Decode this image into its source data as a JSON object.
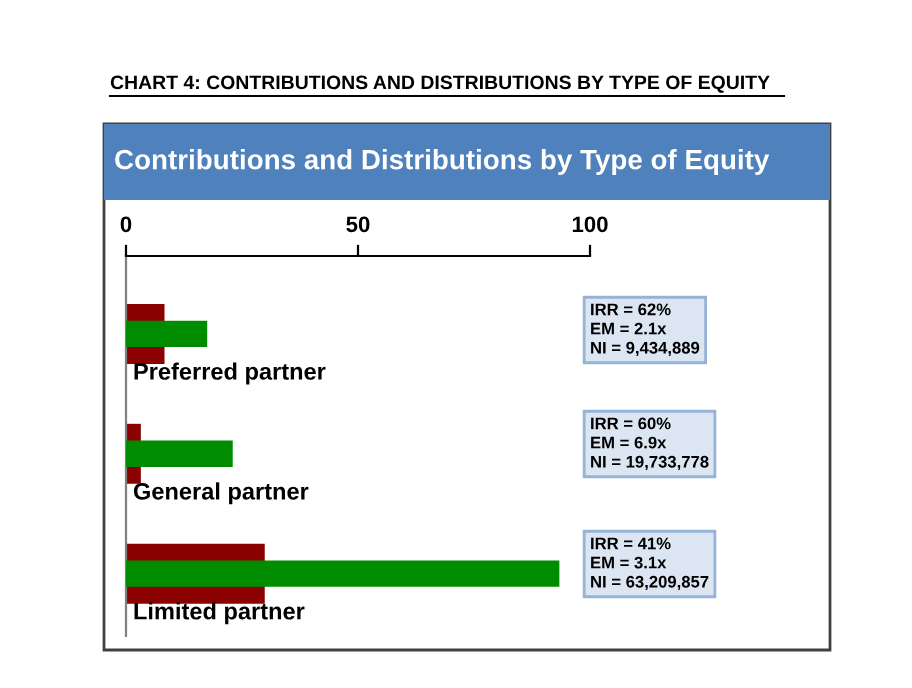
{
  "chart_data": {
    "type": "bar",
    "orientation": "horizontal",
    "title": "CHART 4: CONTRIBUTIONS AND DISTRIBUTIONS BY TYPE OF EQUITY",
    "subtitle": "Contributions and Distributions by Type of Equity",
    "categories": [
      "Preferred partner",
      "General partner",
      "Limited partner"
    ],
    "series": [
      {
        "color": "#8b0000",
        "values": [
          8.3,
          3.2,
          29.9
        ]
      },
      {
        "color": "#008c00",
        "values": [
          17.5,
          23,
          93.4
        ]
      }
    ],
    "xlim": [
      0,
      100
    ],
    "xticks": [
      0,
      50,
      100
    ],
    "grid": false,
    "annotations": [
      "IRR = 62%\nEM = 2.1x\nNI = 9,434,889",
      "IRR = 60%\nEM = 6.9x\nNI = 19,733,778",
      "IRR = 41%\nEM = 3.1x\nNI = 63,209,857"
    ]
  }
}
